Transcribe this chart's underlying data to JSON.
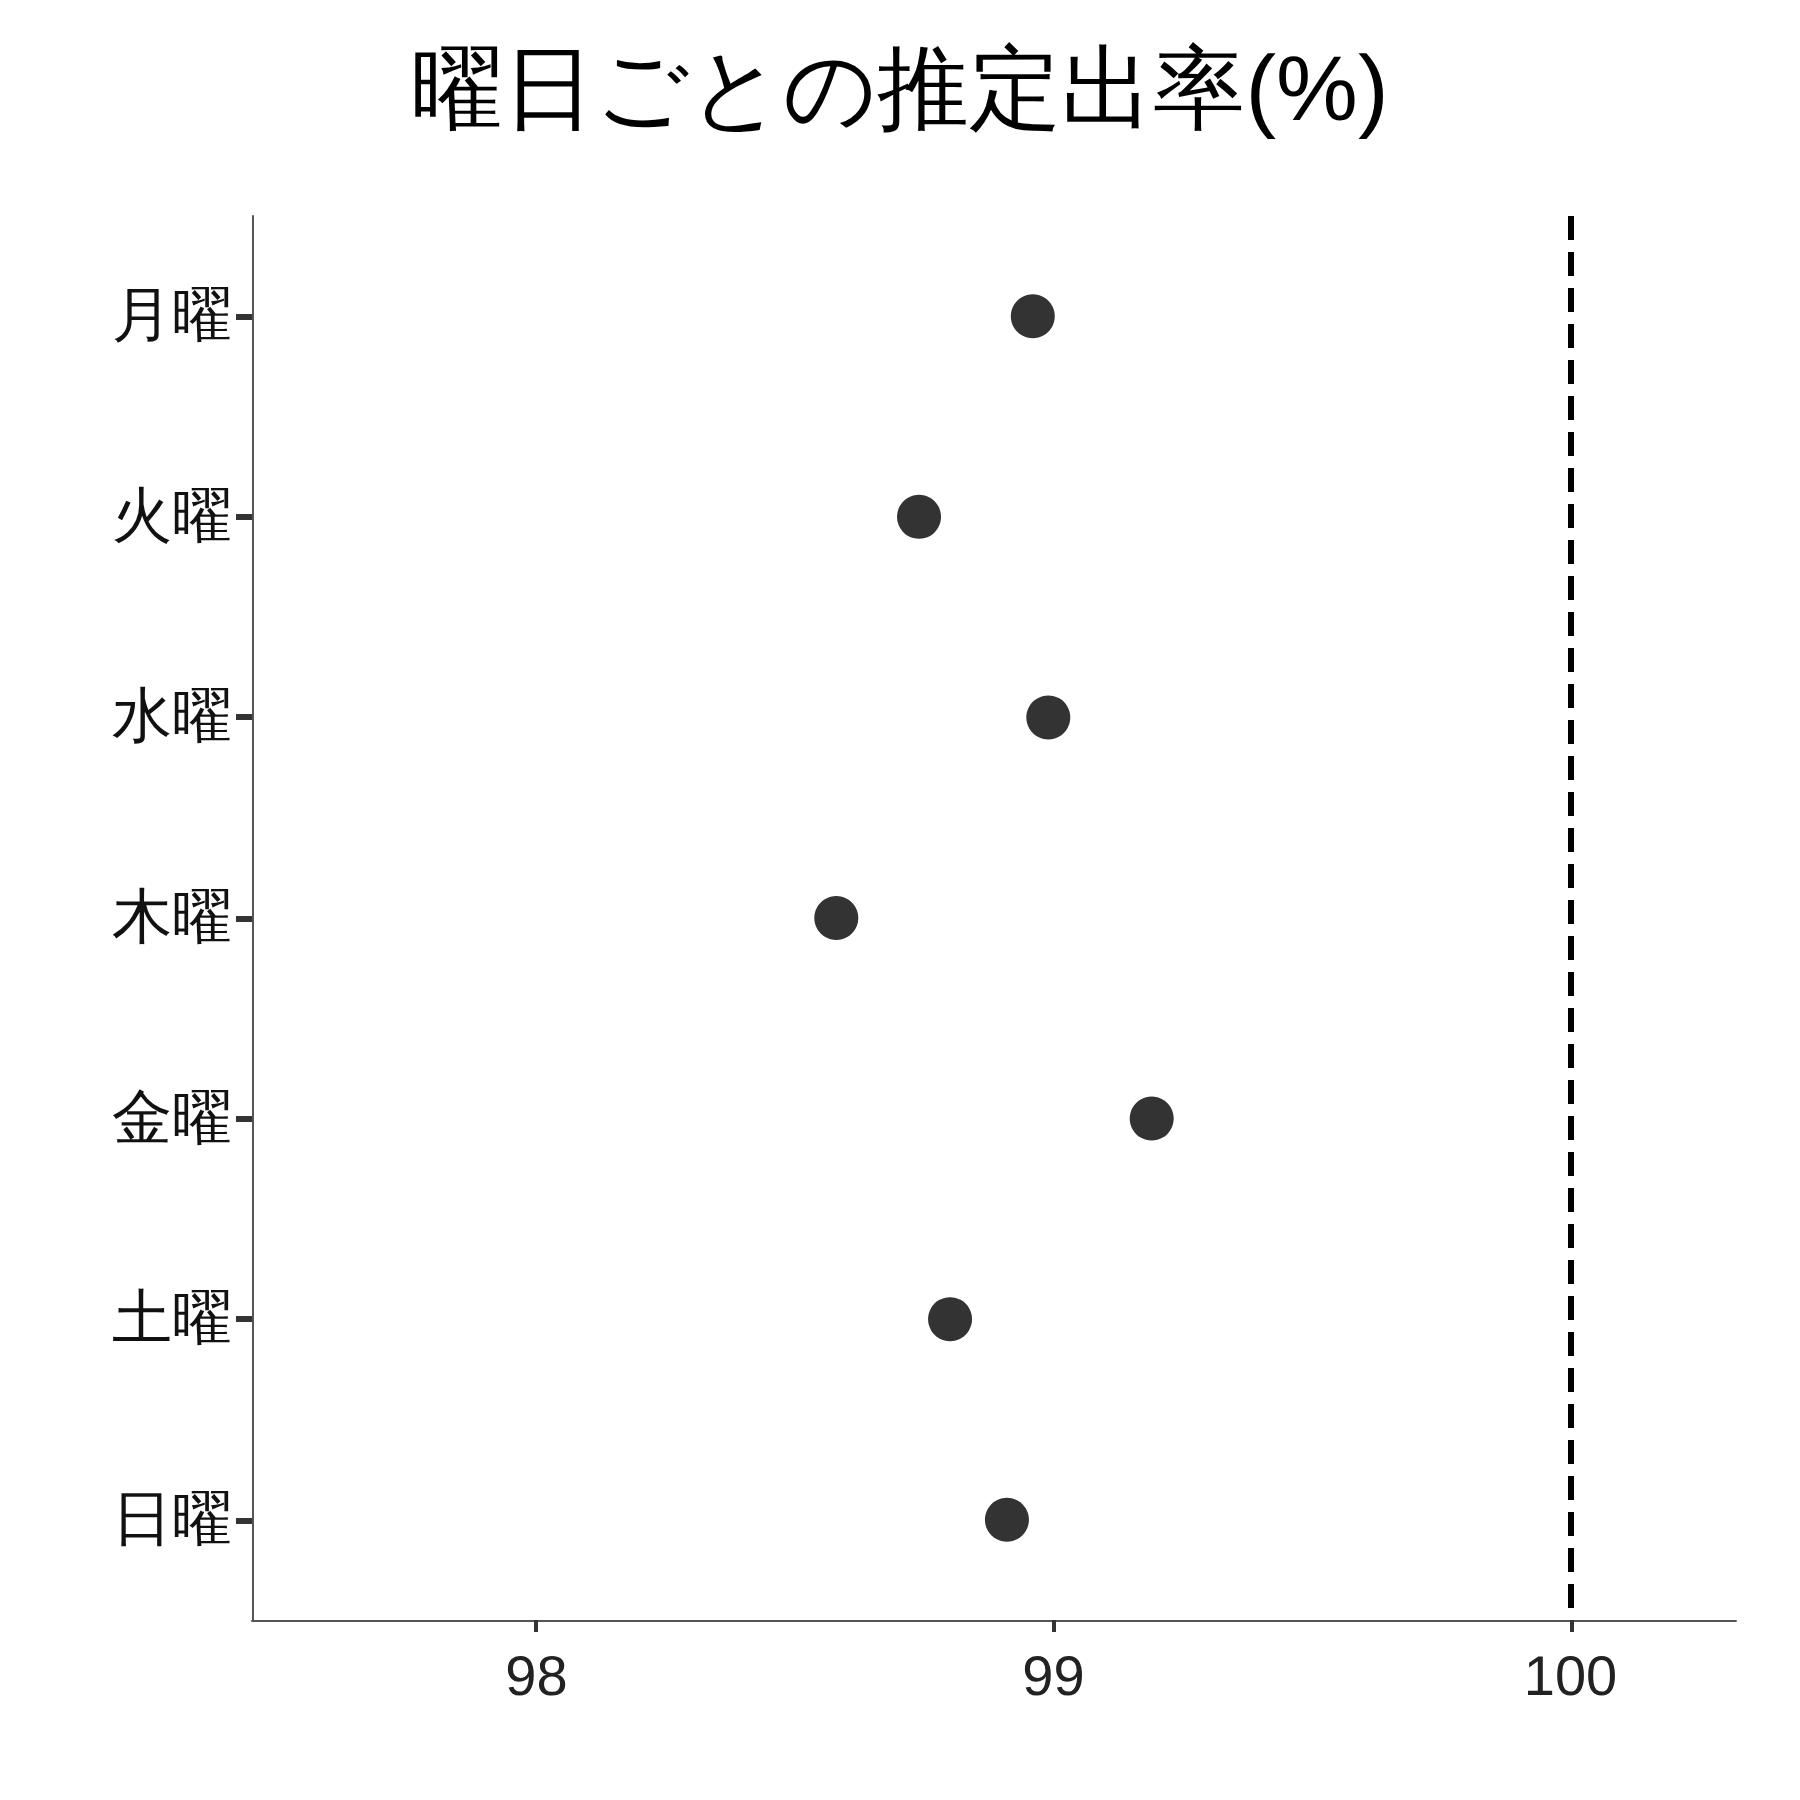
{
  "chart_data": {
    "type": "scatter",
    "title": "曜日ごとの推定出率(%)",
    "orientation": "horizontal",
    "categories": [
      "月曜",
      "火曜",
      "水曜",
      "木曜",
      "金曜",
      "土曜",
      "日曜"
    ],
    "values": [
      98.96,
      98.74,
      98.99,
      98.58,
      99.19,
      98.8,
      98.91
    ],
    "color": "#000000",
    "marker": "circle",
    "grid": false,
    "xlim": [
      97.45,
      100.32
    ],
    "xticks": [
      98,
      99,
      100
    ],
    "ref_lines": [
      {
        "axis": "x",
        "value": 100,
        "color": "#000000",
        "line_style": "dashed"
      }
    ]
  }
}
